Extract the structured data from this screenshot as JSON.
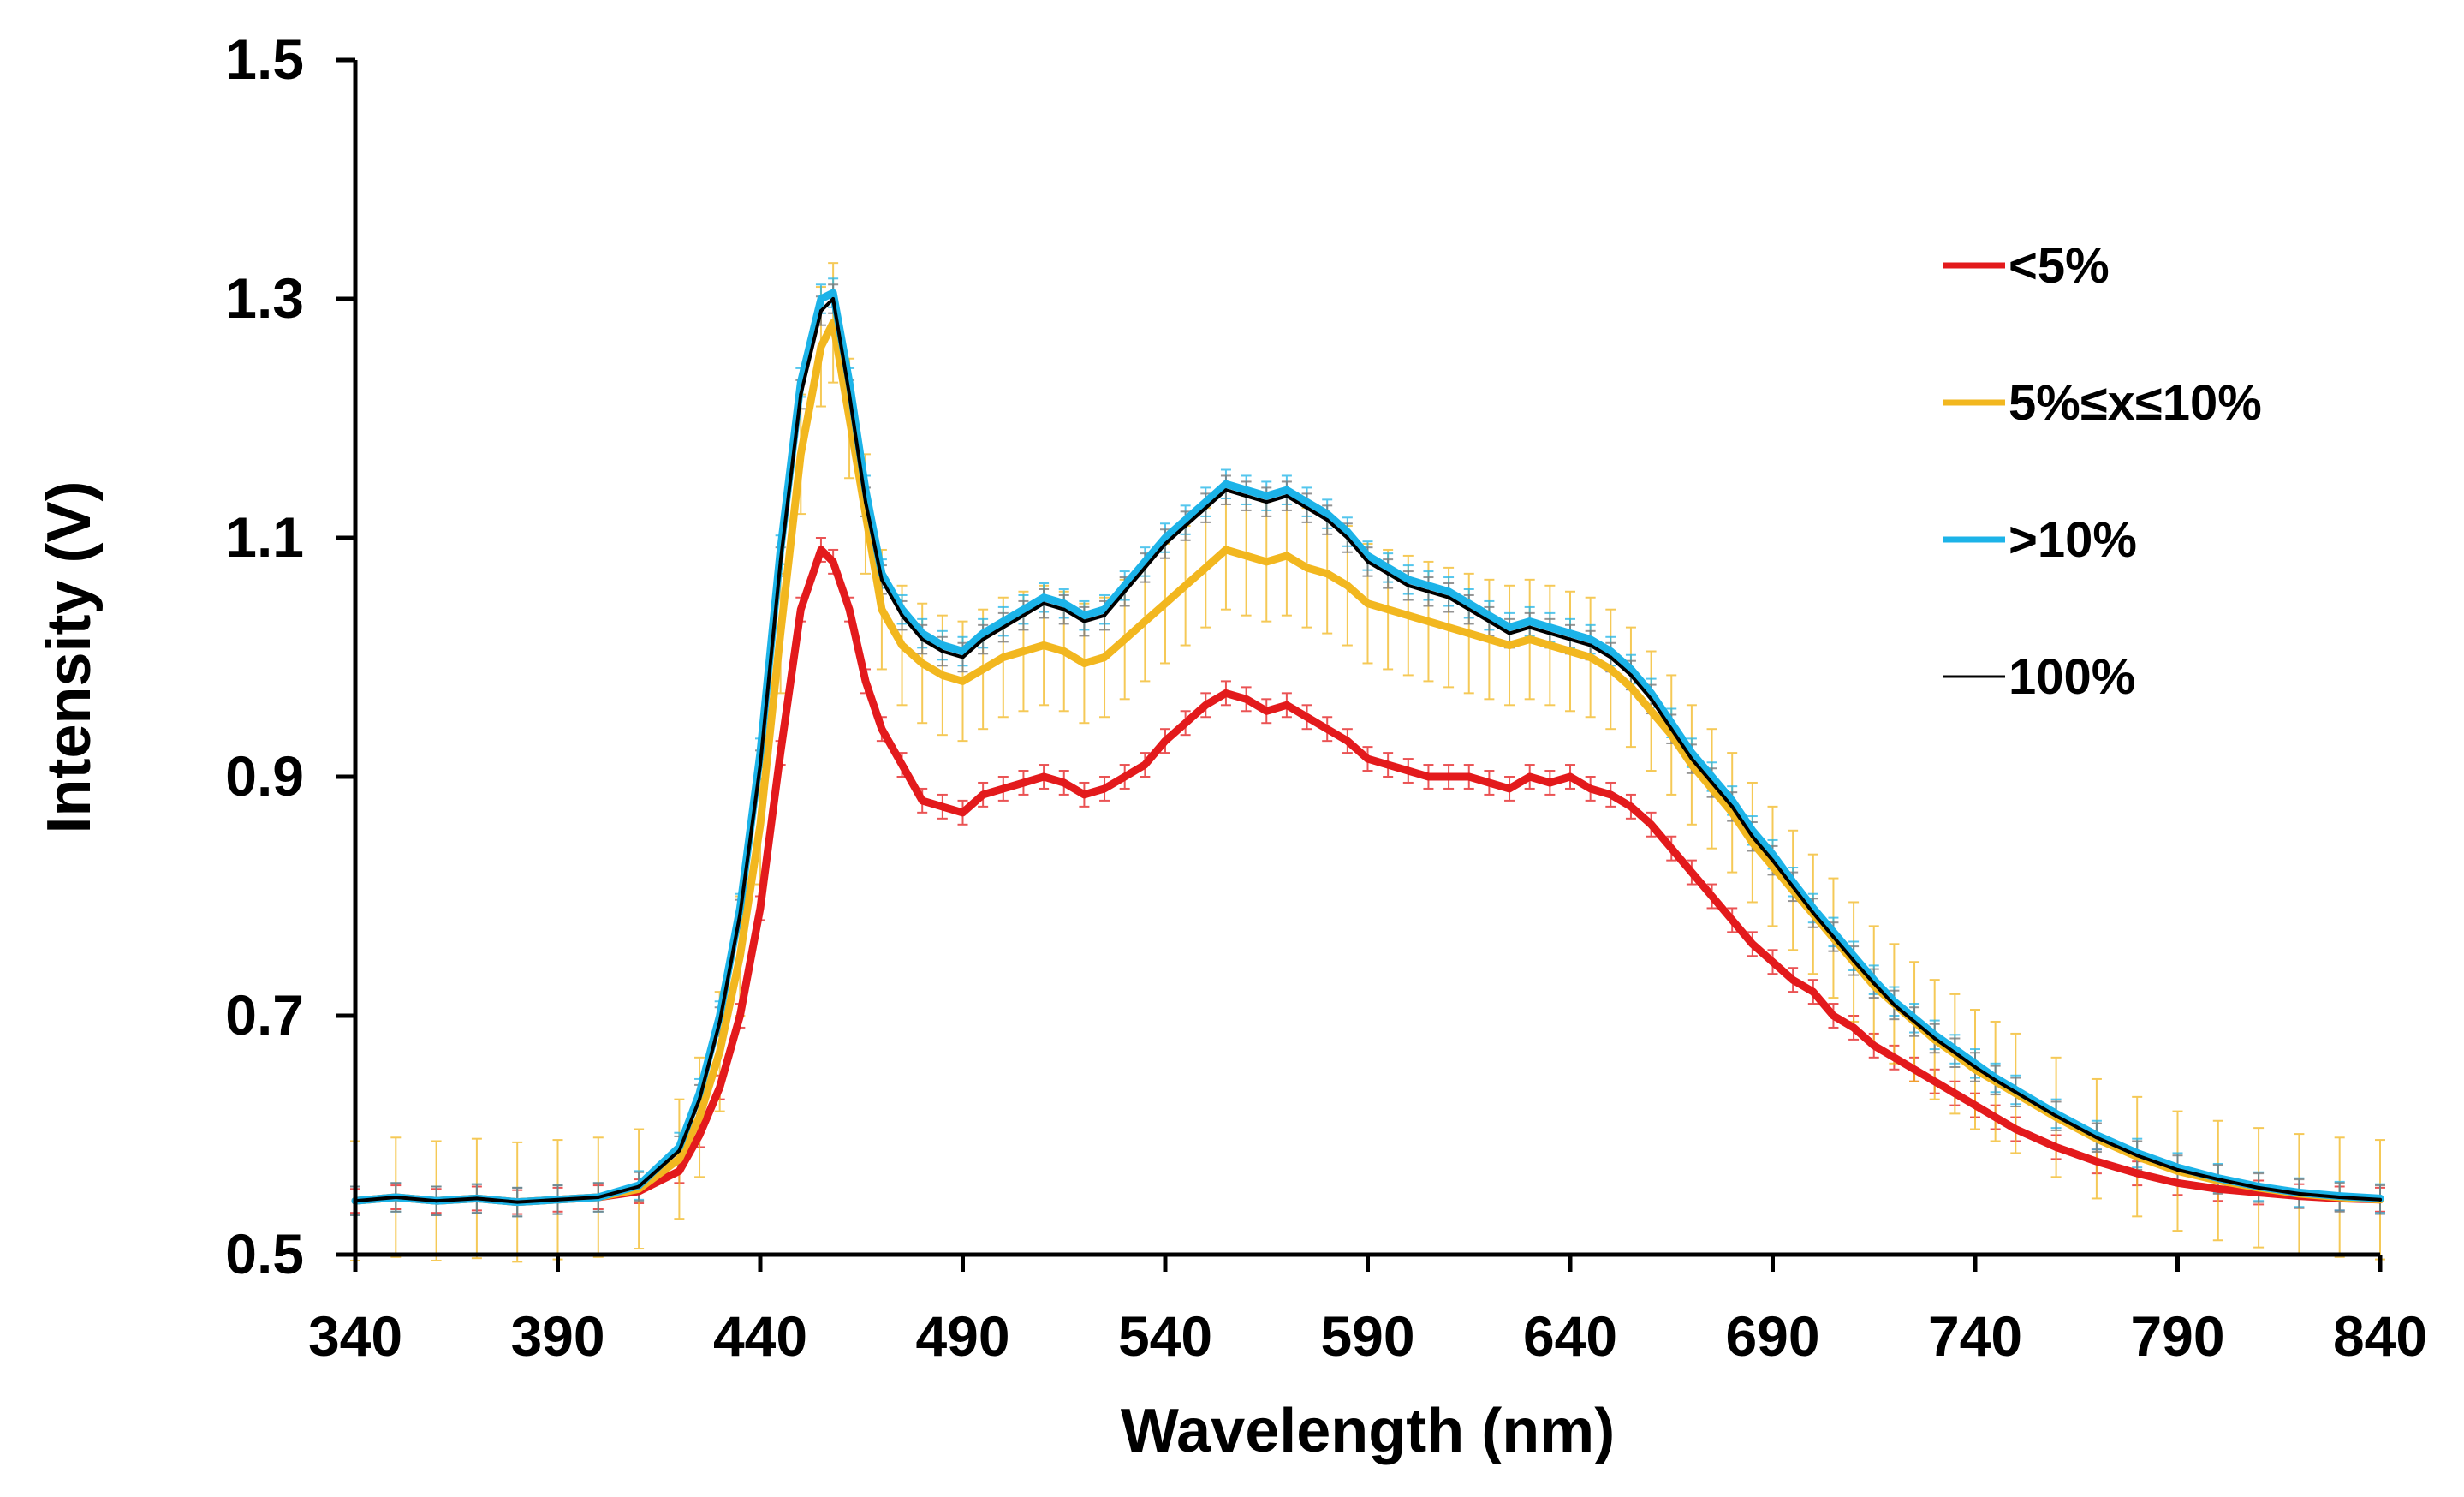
{
  "chart_data": {
    "type": "line",
    "title": "",
    "xlabel": "Wavelength (nm)",
    "ylabel": "Intensity (V)",
    "xlim": [
      340,
      840
    ],
    "ylim": [
      0.5,
      1.5
    ],
    "xticks": [
      "340",
      "390",
      "440",
      "490",
      "540",
      "590",
      "640",
      "690",
      "740",
      "790",
      "840"
    ],
    "yticks": [
      "0.5",
      "0.7",
      "0.9",
      "1.1",
      "1.3",
      "1.5"
    ],
    "grid": false,
    "legend_position": "top-right",
    "error_bars": true,
    "x": [
      340,
      350,
      360,
      370,
      380,
      390,
      400,
      410,
      420,
      425,
      430,
      435,
      440,
      445,
      450,
      455,
      458,
      462,
      466,
      470,
      475,
      480,
      485,
      490,
      495,
      500,
      505,
      510,
      515,
      520,
      525,
      530,
      535,
      540,
      545,
      550,
      555,
      560,
      565,
      570,
      575,
      580,
      585,
      590,
      595,
      600,
      605,
      610,
      615,
      620,
      625,
      630,
      635,
      640,
      645,
      650,
      655,
      660,
      665,
      670,
      675,
      680,
      685,
      690,
      695,
      700,
      705,
      710,
      715,
      720,
      725,
      730,
      735,
      740,
      745,
      750,
      760,
      770,
      780,
      790,
      800,
      810,
      820,
      830,
      840
    ],
    "series": [
      {
        "name": "<5%",
        "color": "#e31a1c",
        "error": 0.01,
        "values": [
          0.545,
          0.548,
          0.545,
          0.547,
          0.544,
          0.546,
          0.548,
          0.553,
          0.57,
          0.6,
          0.64,
          0.7,
          0.79,
          0.92,
          1.04,
          1.09,
          1.08,
          1.04,
          0.98,
          0.94,
          0.91,
          0.88,
          0.875,
          0.87,
          0.885,
          0.89,
          0.895,
          0.9,
          0.895,
          0.885,
          0.89,
          0.9,
          0.91,
          0.93,
          0.945,
          0.96,
          0.97,
          0.965,
          0.955,
          0.96,
          0.95,
          0.94,
          0.93,
          0.915,
          0.91,
          0.905,
          0.9,
          0.9,
          0.9,
          0.895,
          0.89,
          0.9,
          0.895,
          0.9,
          0.89,
          0.885,
          0.875,
          0.86,
          0.84,
          0.82,
          0.8,
          0.78,
          0.76,
          0.745,
          0.73,
          0.72,
          0.7,
          0.69,
          0.675,
          0.665,
          0.655,
          0.645,
          0.635,
          0.625,
          0.615,
          0.605,
          0.59,
          0.578,
          0.568,
          0.56,
          0.555,
          0.552,
          0.549,
          0.547,
          0.546
        ]
      },
      {
        "name": "5%≤x≤10%",
        "color": "#f2b71f",
        "error": 0.05,
        "values": [
          0.545,
          0.548,
          0.545,
          0.547,
          0.544,
          0.546,
          0.548,
          0.555,
          0.58,
          0.615,
          0.67,
          0.75,
          0.86,
          1.02,
          1.17,
          1.26,
          1.28,
          1.2,
          1.12,
          1.04,
          1.01,
          0.995,
          0.985,
          0.98,
          0.99,
          1.0,
          1.005,
          1.01,
          1.005,
          0.995,
          1.0,
          1.015,
          1.03,
          1.045,
          1.06,
          1.075,
          1.09,
          1.085,
          1.08,
          1.085,
          1.075,
          1.07,
          1.06,
          1.045,
          1.04,
          1.035,
          1.03,
          1.025,
          1.02,
          1.015,
          1.01,
          1.015,
          1.01,
          1.005,
          1.0,
          0.99,
          0.975,
          0.955,
          0.935,
          0.91,
          0.89,
          0.87,
          0.845,
          0.825,
          0.805,
          0.785,
          0.765,
          0.745,
          0.725,
          0.71,
          0.695,
          0.68,
          0.668,
          0.655,
          0.645,
          0.635,
          0.615,
          0.597,
          0.582,
          0.57,
          0.562,
          0.556,
          0.551,
          0.548,
          0.546
        ]
      },
      {
        "name": ">10%",
        "color": "#1cb3e8",
        "error": 0.012,
        "values": [
          0.545,
          0.548,
          0.545,
          0.547,
          0.544,
          0.546,
          0.548,
          0.558,
          0.59,
          0.635,
          0.7,
          0.79,
          0.92,
          1.09,
          1.23,
          1.3,
          1.305,
          1.23,
          1.14,
          1.07,
          1.04,
          1.02,
          1.01,
          1.005,
          1.02,
          1.03,
          1.04,
          1.05,
          1.045,
          1.035,
          1.04,
          1.06,
          1.08,
          1.1,
          1.115,
          1.13,
          1.145,
          1.14,
          1.135,
          1.14,
          1.13,
          1.12,
          1.105,
          1.085,
          1.075,
          1.065,
          1.06,
          1.055,
          1.045,
          1.035,
          1.025,
          1.03,
          1.025,
          1.02,
          1.015,
          1.005,
          0.99,
          0.97,
          0.945,
          0.92,
          0.9,
          0.88,
          0.855,
          0.835,
          0.812,
          0.79,
          0.77,
          0.75,
          0.73,
          0.712,
          0.698,
          0.684,
          0.672,
          0.66,
          0.648,
          0.638,
          0.618,
          0.6,
          0.585,
          0.573,
          0.564,
          0.557,
          0.552,
          0.549,
          0.547
        ]
      },
      {
        "name": "100%",
        "color": "#000000",
        "error": 0.012,
        "values": [
          0.545,
          0.548,
          0.545,
          0.547,
          0.544,
          0.546,
          0.548,
          0.557,
          0.587,
          0.63,
          0.695,
          0.785,
          0.91,
          1.08,
          1.22,
          1.29,
          1.3,
          1.22,
          1.13,
          1.065,
          1.035,
          1.015,
          1.005,
          1.0,
          1.015,
          1.025,
          1.035,
          1.045,
          1.04,
          1.03,
          1.035,
          1.055,
          1.075,
          1.095,
          1.11,
          1.125,
          1.14,
          1.135,
          1.13,
          1.135,
          1.125,
          1.115,
          1.1,
          1.08,
          1.07,
          1.06,
          1.055,
          1.05,
          1.04,
          1.03,
          1.02,
          1.025,
          1.02,
          1.015,
          1.01,
          1.0,
          0.985,
          0.965,
          0.94,
          0.915,
          0.895,
          0.875,
          0.85,
          0.83,
          0.808,
          0.786,
          0.766,
          0.746,
          0.727,
          0.709,
          0.695,
          0.681,
          0.669,
          0.657,
          0.646,
          0.636,
          0.616,
          0.598,
          0.583,
          0.571,
          0.563,
          0.556,
          0.551,
          0.548,
          0.546
        ]
      }
    ],
    "legend": [
      {
        "label": "<5%",
        "color": "#e31a1c"
      },
      {
        "label": "5%≤x≤10%",
        "color": "#f2b71f"
      },
      {
        "label": ">10%",
        "color": "#1cb3e8"
      },
      {
        "label": "100%",
        "color": "#000000"
      }
    ]
  }
}
